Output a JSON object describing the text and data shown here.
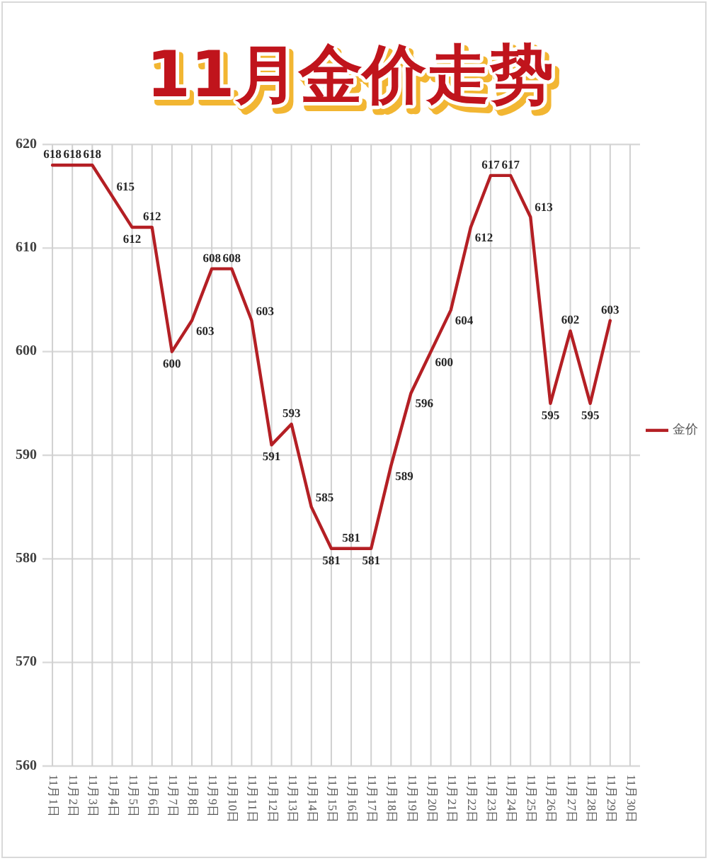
{
  "chart_data": {
    "type": "line",
    "title": "11月金价走势",
    "categories": [
      "11月1日",
      "11月2日",
      "11月3日",
      "11月4日",
      "11月5日",
      "11月6日",
      "11月7日",
      "11月8日",
      "11月9日",
      "11月10日",
      "11月11日",
      "11月12日",
      "11月13日",
      "11月14日",
      "11月15日",
      "11月16日",
      "11月17日",
      "11月18日",
      "11月19日",
      "11月20日",
      "11月21日",
      "11月22日",
      "11月23日",
      "11月24日",
      "11月25日",
      "11月26日",
      "11月27日",
      "11月28日",
      "11月29日",
      "11月30日"
    ],
    "series": [
      {
        "name": "金价",
        "color": "#b41f24",
        "values": [
          618,
          618,
          618,
          615,
          612,
          612,
          600,
          603,
          608,
          608,
          603,
          591,
          593,
          585,
          581,
          581,
          581,
          589,
          596,
          600,
          604,
          612,
          617,
          617,
          613,
          595,
          602,
          595,
          603,
          null
        ]
      }
    ],
    "ylim": [
      560,
      620
    ],
    "yticks": [
      560,
      570,
      580,
      590,
      600,
      610,
      620
    ],
    "grid": true,
    "legend": "right",
    "data_labels": true
  }
}
